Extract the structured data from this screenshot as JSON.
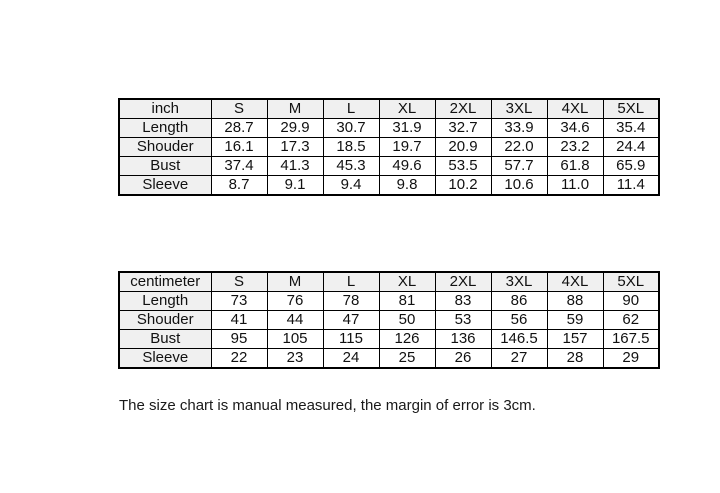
{
  "colors": {
    "background": "#ffffff",
    "header_cell_bg": "#f0f0f0",
    "border": "#000000",
    "text": "#1a1a1a"
  },
  "note": {
    "text": "The size chart is manual measured, the margin of error is 3cm."
  },
  "chart_data": [
    {
      "type": "table",
      "title": "inch",
      "columns": [
        "inch",
        "S",
        "M",
        "L",
        "XL",
        "2XL",
        "3XL",
        "4XL",
        "5XL"
      ],
      "rows": [
        {
          "label": "Length",
          "values": [
            "28.7",
            "29.9",
            "30.7",
            "31.9",
            "32.7",
            "33.9",
            "34.6",
            "35.4"
          ]
        },
        {
          "label": "Shouder",
          "values": [
            "16.1",
            "17.3",
            "18.5",
            "19.7",
            "20.9",
            "22.0",
            "23.2",
            "24.4"
          ]
        },
        {
          "label": "Bust",
          "values": [
            "37.4",
            "41.3",
            "45.3",
            "49.6",
            "53.5",
            "57.7",
            "61.8",
            "65.9"
          ]
        },
        {
          "label": "Sleeve",
          "values": [
            "8.7",
            "9.1",
            "9.4",
            "9.8",
            "10.2",
            "10.6",
            "11.0",
            "11.4"
          ]
        }
      ]
    },
    {
      "type": "table",
      "title": "centimeter",
      "columns": [
        "centimeter",
        "S",
        "M",
        "L",
        "XL",
        "2XL",
        "3XL",
        "4XL",
        "5XL"
      ],
      "rows": [
        {
          "label": "Length",
          "values": [
            "73",
            "76",
            "78",
            "81",
            "83",
            "86",
            "88",
            "90"
          ]
        },
        {
          "label": "Shouder",
          "values": [
            "41",
            "44",
            "47",
            "50",
            "53",
            "56",
            "59",
            "62"
          ]
        },
        {
          "label": "Bust",
          "values": [
            "95",
            "105",
            "115",
            "126",
            "136",
            "146.5",
            "157",
            "167.5"
          ]
        },
        {
          "label": "Sleeve",
          "values": [
            "22",
            "23",
            "24",
            "25",
            "26",
            "27",
            "28",
            "29"
          ]
        }
      ]
    }
  ]
}
